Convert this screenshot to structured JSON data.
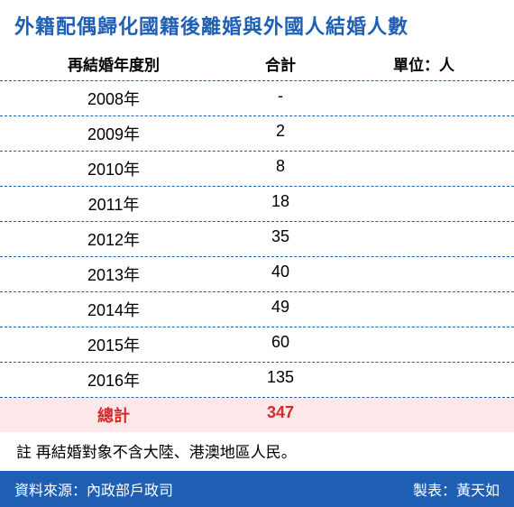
{
  "title": "外籍配偶歸化國籍後離婚與外國人結婚人數",
  "title_color": "#1e5fb4",
  "header": {
    "year": "再結婚年度別",
    "total": "合計",
    "unit": "單位：人"
  },
  "divider_color": "#1e5fb4",
  "rows": [
    {
      "year": "2008年",
      "total": "-"
    },
    {
      "year": "2009年",
      "total": "2"
    },
    {
      "year": "2010年",
      "total": "8"
    },
    {
      "year": "2011年",
      "total": "18"
    },
    {
      "year": "2012年",
      "total": "35"
    },
    {
      "year": "2013年",
      "total": "40"
    },
    {
      "year": "2014年",
      "total": "49"
    },
    {
      "year": "2015年",
      "total": "60"
    },
    {
      "year": "2016年",
      "total": "135"
    }
  ],
  "total_row": {
    "label": "總計",
    "value": "347",
    "text_color": "#d42a2a",
    "bg_color": "#fde7e9"
  },
  "note": "註 再結婚對象不含大陸、港澳地區人民。",
  "footer": {
    "source": "資料來源：內政部戶政司",
    "author": "製表：黃天如",
    "bg_color": "#1e5fb4",
    "text_color": "#ffffff"
  }
}
